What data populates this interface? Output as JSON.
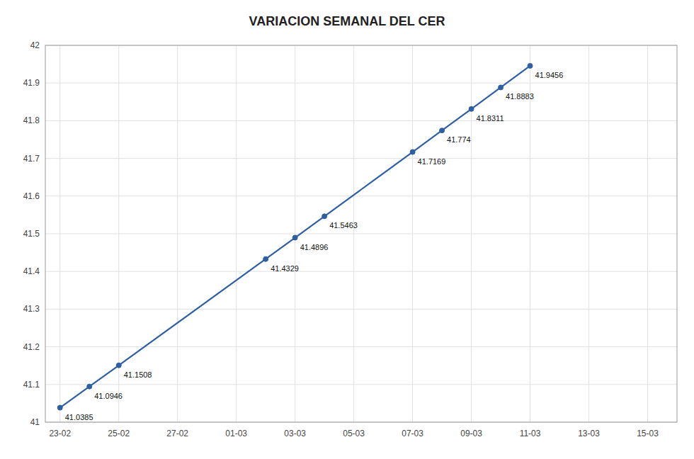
{
  "chart_data": {
    "type": "line",
    "title": "VARIACION SEMANAL DEL CER",
    "x": [
      0,
      1,
      2,
      7,
      8,
      9,
      12,
      13,
      14,
      15,
      16
    ],
    "values": [
      41.0385,
      41.0946,
      41.1508,
      41.4329,
      41.4896,
      41.5463,
      41.7169,
      41.774,
      41.8311,
      41.8883,
      41.9456
    ],
    "color": "#2E5FA3",
    "marker": "circle",
    "xlim": [
      -0.5,
      21
    ],
    "ylim": [
      41,
      42
    ],
    "xticks": [
      {
        "value": 0,
        "label": "23-02"
      },
      {
        "value": 2,
        "label": "25-02"
      },
      {
        "value": 4,
        "label": "27-02"
      },
      {
        "value": 6,
        "label": "01-03"
      },
      {
        "value": 8,
        "label": "03-03"
      },
      {
        "value": 10,
        "label": "05-03"
      },
      {
        "value": 12,
        "label": "07-03"
      },
      {
        "value": 14,
        "label": "09-03"
      },
      {
        "value": 16,
        "label": "11-03"
      },
      {
        "value": 18,
        "label": "13-03"
      },
      {
        "value": 20,
        "label": "15-03"
      }
    ],
    "yticks": [
      41,
      41.1,
      41.2,
      41.3,
      41.4,
      41.5,
      41.6,
      41.7,
      41.8,
      41.9,
      42
    ],
    "grid": true,
    "data_labels": true
  }
}
